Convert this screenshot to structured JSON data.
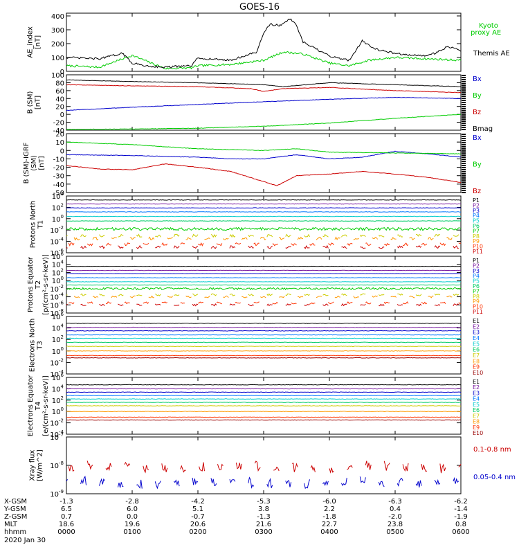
{
  "title": "GOES-16",
  "date_label": "2020 Jan 30",
  "time_axis": {
    "row_labels": [
      "X-GSM",
      "Y-GSM",
      "Z-GSM",
      "MLT",
      "hhmm"
    ],
    "columns": [
      {
        "values": [
          "-1.3",
          "6.5",
          "0.7",
          "18.6",
          "0000"
        ]
      },
      {
        "values": [
          "-2.8",
          "6.0",
          "0.0",
          "19.6",
          "0100"
        ]
      },
      {
        "values": [
          "-4.2",
          "5.1",
          "-0.7",
          "20.6",
          "0200"
        ]
      },
      {
        "values": [
          "-5.3",
          "3.8",
          "-1.3",
          "21.6",
          "0300"
        ]
      },
      {
        "values": [
          "-6.0",
          "2.2",
          "-1.8",
          "22.7",
          "0400"
        ]
      },
      {
        "values": [
          "-6.3",
          "0.4",
          "-2.0",
          "23.8",
          "0500"
        ]
      },
      {
        "values": [
          "-6.2",
          "-1.4",
          "-1.9",
          "0.8",
          "0600"
        ]
      }
    ]
  },
  "chart_data": [
    {
      "type": "line",
      "ylabel": "AE_index [nT]",
      "ylim": [
        0,
        420
      ],
      "ticks": [
        "0",
        "100",
        "200",
        "300",
        "400"
      ],
      "series": [
        {
          "name": "Kyoto proxy AE",
          "color": "#00cc00",
          "x": [
            0,
            0.5,
            1,
            1.5,
            1.9,
            2,
            2.5,
            3,
            3.3,
            3.6,
            4,
            4.3,
            4.6,
            5,
            5.5,
            6
          ],
          "y": [
            40,
            30,
            115,
            20,
            25,
            40,
            50,
            80,
            140,
            125,
            60,
            40,
            80,
            100,
            90,
            80
          ]
        },
        {
          "name": "Themis AE",
          "color": "#000000",
          "x": [
            0,
            0.5,
            0.85,
            1,
            1.2,
            1.5,
            1.9,
            2,
            2.5,
            2.9,
            3,
            3.1,
            3.25,
            3.4,
            3.5,
            3.6,
            3.8,
            4,
            4.3,
            4.5,
            4.7,
            5,
            5.2,
            5.4,
            5.6,
            5.8,
            6
          ],
          "y": [
            100,
            90,
            130,
            60,
            40,
            30,
            40,
            95,
            80,
            140,
            280,
            340,
            330,
            380,
            330,
            210,
            160,
            110,
            80,
            220,
            160,
            130,
            120,
            110,
            130,
            180,
            150
          ]
        }
      ]
    },
    {
      "type": "line",
      "ylabel": "B (SM) [nT]",
      "ylim": [
        -40,
        100
      ],
      "ticks": [
        "-40",
        "-20",
        "0",
        "20",
        "40",
        "60",
        "80",
        "100"
      ],
      "series": [
        {
          "name": "Bx",
          "color": "#0000cc",
          "x": [
            0,
            1,
            2,
            3,
            4,
            5,
            6
          ],
          "y": [
            10,
            18,
            25,
            32,
            38,
            43,
            40
          ]
        },
        {
          "name": "By",
          "color": "#00cc00",
          "x": [
            0,
            1,
            2,
            3,
            4,
            5,
            6
          ],
          "y": [
            -38,
            -37,
            -35,
            -30,
            -22,
            -10,
            0
          ]
        },
        {
          "name": "Bz",
          "color": "#cc0000",
          "x": [
            0,
            1,
            2,
            2.8,
            3,
            3.3,
            4,
            5,
            6
          ],
          "y": [
            75,
            72,
            70,
            65,
            58,
            65,
            68,
            60,
            55
          ]
        },
        {
          "name": "Bmag",
          "color": "#000000",
          "x": [
            0,
            1,
            2,
            3,
            3.3,
            4,
            5,
            6
          ],
          "y": [
            87,
            83,
            80,
            75,
            70,
            80,
            75,
            70
          ]
        }
      ]
    },
    {
      "type": "line",
      "ylabel": "B (SM)-IGRF (SM) [nT]",
      "ylim": [
        -50,
        20
      ],
      "ticks": [
        "-50",
        "-40",
        "-30",
        "-20",
        "-10",
        "0",
        "10",
        "20"
      ],
      "series": [
        {
          "name": "Bx",
          "color": "#0000cc",
          "x": [
            0,
            1,
            2,
            2.5,
            3,
            3.5,
            4,
            4.5,
            5,
            5.5,
            6
          ],
          "y": [
            -5,
            -6,
            -8,
            -10,
            -10,
            -5,
            -10,
            -8,
            -1,
            -4,
            -8
          ]
        },
        {
          "name": "By",
          "color": "#00cc00",
          "x": [
            0,
            1,
            2,
            3,
            3.5,
            4,
            5,
            6
          ],
          "y": [
            10,
            7,
            2,
            0,
            2,
            -2,
            -3,
            -4
          ]
        },
        {
          "name": "Bz",
          "color": "#cc0000",
          "x": [
            0,
            0.5,
            1,
            1.5,
            2,
            2.5,
            3,
            3.2,
            3.5,
            4,
            4.5,
            5,
            5.5,
            6
          ],
          "y": [
            -18,
            -22,
            -23,
            -16,
            -20,
            -25,
            -37,
            -42,
            -30,
            -28,
            -25,
            -28,
            -32,
            -38
          ]
        }
      ]
    },
    {
      "type": "line",
      "ylabel": "Protons North T1",
      "log": true,
      "ylim_exp": [
        -6,
        4
      ],
      "ticks": [
        "10^4",
        "10^2",
        "10^0",
        "10^-2",
        "10^-4",
        "10^-6"
      ],
      "series": [
        {
          "name": "P1",
          "color": "#000000",
          "y_exp": 3.3
        },
        {
          "name": "P2",
          "color": "#7a1aa0",
          "y_exp": 2.6
        },
        {
          "name": "P3",
          "color": "#0000cc",
          "y_exp": 1.9
        },
        {
          "name": "P4",
          "color": "#0077ff",
          "y_exp": 1.2
        },
        {
          "name": "P5",
          "color": "#00cccc",
          "y_exp": 0.4
        },
        {
          "name": "P6",
          "color": "#00cc66",
          "y_exp": -0.4
        },
        {
          "name": "P7",
          "color": "#00cc00",
          "y_exp": -1.8
        },
        {
          "name": "P8",
          "color": "#cccc00",
          "y_exp": -3.0
        },
        {
          "name": "P9",
          "color": "#ff9900",
          "y_exp": -3.5
        },
        {
          "name": "P10",
          "color": "#ff3300",
          "y_exp": -4.5
        },
        {
          "name": "P11",
          "color": "#cc0000",
          "y_exp": -5.0
        }
      ]
    },
    {
      "type": "line",
      "ylabel": "Protons Equator T2 [p/(cm²-s-sr-keV)]",
      "log": true,
      "ylim_exp": [
        -8,
        6
      ],
      "ticks": [
        "10^6",
        "10^4",
        "10^2",
        "10^0",
        "10^-2",
        "10^-4",
        "10^-6",
        "10^-8"
      ],
      "series": [
        {
          "name": "P1",
          "color": "#000000",
          "y_exp": 3.5
        },
        {
          "name": "P2",
          "color": "#7a1aa0",
          "y_exp": 2.5
        },
        {
          "name": "P3",
          "color": "#0000cc",
          "y_exp": 1.7
        },
        {
          "name": "P4",
          "color": "#0077ff",
          "y_exp": 0.7
        },
        {
          "name": "P5",
          "color": "#00cccc",
          "y_exp": -0.3
        },
        {
          "name": "P6",
          "color": "#00cc66",
          "y_exp": -1.1
        },
        {
          "name": "P7",
          "color": "#00cc00",
          "y_exp": -2.0
        },
        {
          "name": "P8",
          "color": "#cccc00",
          "y_exp": -3.5
        },
        {
          "name": "P9",
          "color": "#ff9900",
          "y_exp": -4.0
        },
        {
          "name": "P10",
          "color": "#ff3300",
          "y_exp": -5.5
        },
        {
          "name": "P11",
          "color": "#cc0000",
          "y_exp": -6.0
        }
      ]
    },
    {
      "type": "line",
      "ylabel": "Electrons North T3",
      "log": true,
      "ylim_exp": [
        -4,
        6
      ],
      "ticks": [
        "10^6",
        "10^4",
        "10^2",
        "10^0",
        "10^-2",
        "10^-4"
      ],
      "series": [
        {
          "name": "E1",
          "color": "#000000",
          "y_exp": 4.8
        },
        {
          "name": "E2",
          "color": "#7a1aa0",
          "y_exp": 4.1
        },
        {
          "name": "E3",
          "color": "#0000cc",
          "y_exp": 3.5
        },
        {
          "name": "E4",
          "color": "#0077ff",
          "y_exp": 2.8
        },
        {
          "name": "E5",
          "color": "#00cccc",
          "y_exp": 2.2
        },
        {
          "name": "E6",
          "color": "#00cc66",
          "y_exp": 1.5
        },
        {
          "name": "E7",
          "color": "#cccc00",
          "y_exp": 0.8
        },
        {
          "name": "E8",
          "color": "#ff9900",
          "y_exp": 0.0
        },
        {
          "name": "E9",
          "color": "#ff3300",
          "y_exp": -0.8
        },
        {
          "name": "E10",
          "color": "#990000",
          "y_exp": -1.2
        }
      ]
    },
    {
      "type": "line",
      "ylabel": "Electrons Equator T4 [e/(cm²-s-sr-keV)]",
      "log": true,
      "ylim_exp": [
        -4,
        6
      ],
      "ticks": [
        "10^6",
        "10^4",
        "10^2",
        "10^0",
        "10^-2",
        "10^-4"
      ],
      "series": [
        {
          "name": "E1",
          "color": "#000000",
          "y_exp": 4.7
        },
        {
          "name": "E2",
          "color": "#7a1aa0",
          "y_exp": 4.0
        },
        {
          "name": "E3",
          "color": "#0000cc",
          "y_exp": 3.4
        },
        {
          "name": "E4",
          "color": "#0077ff",
          "y_exp": 2.8
        },
        {
          "name": "E5",
          "color": "#00cccc",
          "y_exp": 2.2
        },
        {
          "name": "E6",
          "color": "#00cc66",
          "y_exp": 1.6
        },
        {
          "name": "E7",
          "color": "#cccc00",
          "y_exp": 1.0
        },
        {
          "name": "E8",
          "color": "#ff9900",
          "y_exp": 0.0
        },
        {
          "name": "E9",
          "color": "#ff3300",
          "y_exp": -1.0
        },
        {
          "name": "E10",
          "color": "#990000",
          "y_exp": -1.5
        }
      ]
    },
    {
      "type": "line",
      "ylabel": "Xray flux [W/m^2]",
      "log": true,
      "ylim_exp": [
        -9,
        -7
      ],
      "ticks": [
        "10^-7",
        "10^-8",
        "10^-9"
      ],
      "series": [
        {
          "name": "0.1-0.8 nm",
          "color": "#cc0000",
          "y_exp": -8.05
        },
        {
          "name": "0.05-0.4 nm",
          "color": "#0000cc",
          "y_exp": -8.6
        }
      ]
    }
  ]
}
